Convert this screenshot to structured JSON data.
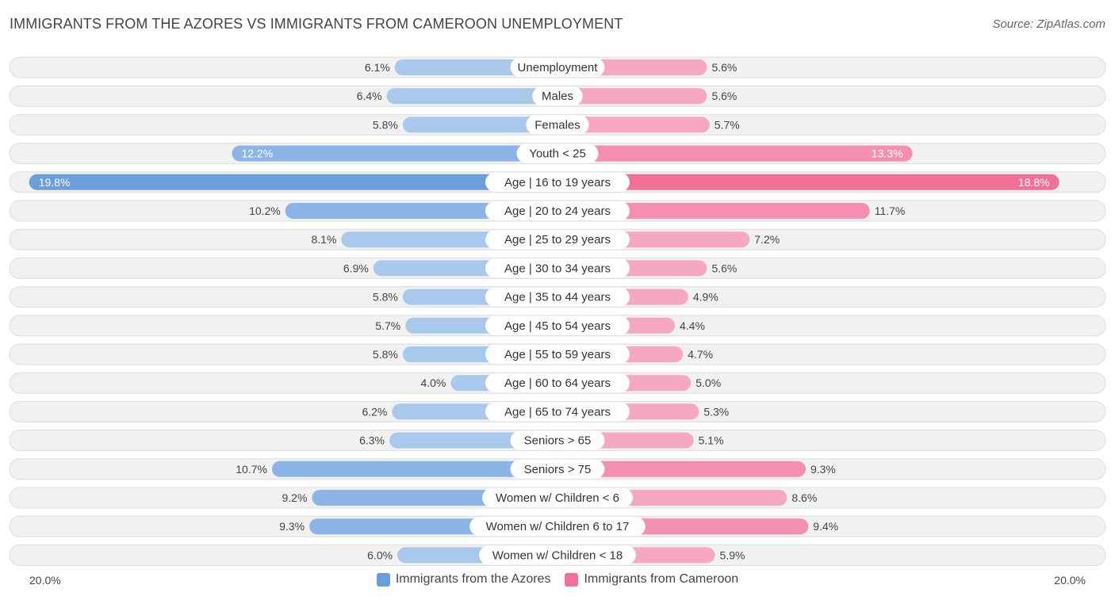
{
  "title": "IMMIGRANTS FROM THE AZORES VS IMMIGRANTS FROM CAMEROON UNEMPLOYMENT",
  "source": "Source: ZipAtlas.com",
  "colors": {
    "left_light": "#a8c8ec",
    "left_strong": "#6a9fdc",
    "right_light": "#f6a8c2",
    "right_strong": "#f07098",
    "row_bg": "#f1f1f1",
    "row_border": "#dddddd"
  },
  "legend": {
    "left": "Immigrants from the Azores",
    "right": "Immigrants from Cameroon"
  },
  "axis": {
    "left_label": "20.0%",
    "right_label": "20.0%"
  },
  "chart_data": {
    "type": "bar",
    "orientation": "diverging-horizontal",
    "title": "IMMIGRANTS FROM THE AZORES VS IMMIGRANTS FROM CAMEROON UNEMPLOYMENT",
    "xlim": [
      0,
      20.0
    ],
    "categories": [
      "Unemployment",
      "Males",
      "Females",
      "Youth < 25",
      "Age | 16 to 19 years",
      "Age | 20 to 24 years",
      "Age | 25 to 29 years",
      "Age | 30 to 34 years",
      "Age | 35 to 44 years",
      "Age | 45 to 54 years",
      "Age | 55 to 59 years",
      "Age | 60 to 64 years",
      "Age | 65 to 74 years",
      "Seniors > 65",
      "Seniors > 75",
      "Women w/ Children < 6",
      "Women w/ Children 6 to 17",
      "Women w/ Children < 18"
    ],
    "series": [
      {
        "name": "Immigrants from the Azores",
        "values": [
          6.1,
          6.4,
          5.8,
          12.2,
          19.8,
          10.2,
          8.1,
          6.9,
          5.8,
          5.7,
          5.8,
          4.0,
          6.2,
          6.3,
          10.7,
          9.2,
          9.3,
          6.0
        ],
        "labels": [
          "6.1%",
          "6.4%",
          "5.8%",
          "12.2%",
          "19.8%",
          "10.2%",
          "8.1%",
          "6.9%",
          "5.8%",
          "5.7%",
          "5.8%",
          "4.0%",
          "6.2%",
          "6.3%",
          "10.7%",
          "9.2%",
          "9.3%",
          "6.0%"
        ]
      },
      {
        "name": "Immigrants from Cameroon",
        "values": [
          5.6,
          5.6,
          5.7,
          13.3,
          18.8,
          11.7,
          7.2,
          5.6,
          4.9,
          4.4,
          4.7,
          5.0,
          5.3,
          5.1,
          9.3,
          8.6,
          9.4,
          5.9
        ],
        "labels": [
          "5.6%",
          "5.6%",
          "5.7%",
          "13.3%",
          "18.8%",
          "11.7%",
          "7.2%",
          "5.6%",
          "4.9%",
          "4.4%",
          "4.7%",
          "5.0%",
          "5.3%",
          "5.1%",
          "9.3%",
          "8.6%",
          "9.4%",
          "5.9%"
        ]
      }
    ]
  }
}
